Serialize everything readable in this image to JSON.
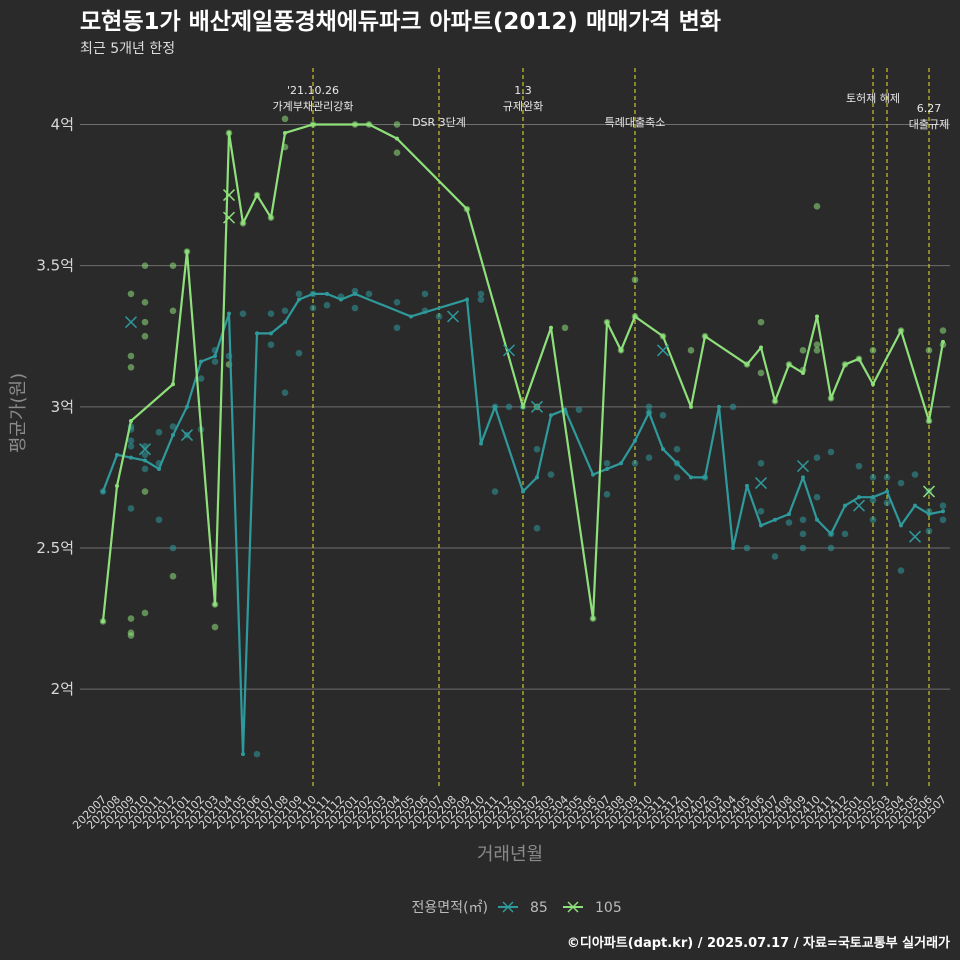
{
  "colors": {
    "background": "#2b2a2b",
    "grid": "#6e6e6e",
    "annotation_line": "#d4d42a",
    "series_85": "#2e9a9c",
    "series_105": "#8ee07a"
  },
  "chart_data": {
    "type": "line",
    "title": "모현동1가 배산제일풍경채에듀파크 아파트(2012) 매매가격 변화",
    "subtitle": "최근 5개년 한정",
    "xlabel": "거래년월",
    "ylabel": "평균가(원)",
    "caption": "©디아파트(dapt.kr) / 2025.07.17 / 자료=국토교통부 실거래가",
    "legend_title": "전용면적(㎡)",
    "legend_position": "bottom",
    "grid": true,
    "ylim": [
      1.65,
      4.2
    ],
    "yticks": [
      2,
      2.5,
      3,
      3.5,
      4
    ],
    "ytick_labels": [
      "2억",
      "2.5억",
      "3억",
      "3.5억",
      "4억"
    ],
    "categories": [
      "202007",
      "202008",
      "202009",
      "202010",
      "202011",
      "202012",
      "202101",
      "202102",
      "202103",
      "202104",
      "202105",
      "202106",
      "202107",
      "202108",
      "202109",
      "202110",
      "202111",
      "202112",
      "202201",
      "202202",
      "202203",
      "202204",
      "202205",
      "202206",
      "202207",
      "202208",
      "202209",
      "202210",
      "202211",
      "202212",
      "202301",
      "202302",
      "202303",
      "202304",
      "202305",
      "202306",
      "202307",
      "202308",
      "202309",
      "202310",
      "202311",
      "202312",
      "202401",
      "202402",
      "202403",
      "202404",
      "202405",
      "202406",
      "202407",
      "202408",
      "202409",
      "202410",
      "202411",
      "202412",
      "202501",
      "202502",
      "202503",
      "202504",
      "202505",
      "202506",
      "202507"
    ],
    "series": [
      {
        "name": "85",
        "values": [
          2.7,
          2.83,
          2.82,
          2.81,
          2.78,
          2.9,
          3.0,
          3.16,
          3.18,
          3.33,
          1.77,
          3.26,
          3.26,
          3.3,
          3.38,
          3.4,
          3.4,
          3.38,
          3.4,
          null,
          null,
          null,
          3.32,
          null,
          null,
          null,
          3.38,
          2.87,
          3.0,
          null,
          2.7,
          2.75,
          2.97,
          2.99,
          null,
          2.76,
          2.78,
          2.8,
          2.88,
          2.98,
          2.85,
          2.8,
          2.75,
          2.75,
          3.0,
          2.5,
          2.72,
          2.58,
          2.6,
          2.62,
          2.75,
          2.6,
          2.55,
          2.65,
          2.68,
          2.68,
          2.7,
          2.58,
          2.65,
          2.62,
          2.63
        ],
        "points": [
          [
            "202007",
            2.7
          ],
          [
            "202009",
            2.64
          ],
          [
            "202009",
            2.86
          ],
          [
            "202009",
            2.88
          ],
          [
            "202009",
            2.92
          ],
          [
            "202009",
            2.93
          ],
          [
            "202010",
            2.78
          ],
          [
            "202010",
            2.83
          ],
          [
            "202010",
            2.86
          ],
          [
            "202011",
            2.6
          ],
          [
            "202011",
            2.8
          ],
          [
            "202011",
            2.91
          ],
          [
            "202012",
            2.5
          ],
          [
            "202012",
            2.93
          ],
          [
            "202101",
            2.9
          ],
          [
            "202102",
            2.92
          ],
          [
            "202102",
            3.1
          ],
          [
            "202103",
            3.2
          ],
          [
            "202103",
            3.16
          ],
          [
            "202104",
            3.18
          ],
          [
            "202105",
            3.33
          ],
          [
            "202106",
            1.77
          ],
          [
            "202107",
            3.22
          ],
          [
            "202107",
            3.33
          ],
          [
            "202108",
            3.05
          ],
          [
            "202108",
            3.34
          ],
          [
            "202109",
            3.19
          ],
          [
            "202109",
            3.4
          ],
          [
            "202110",
            3.35
          ],
          [
            "202110",
            3.4
          ],
          [
            "202111",
            3.36
          ],
          [
            "202112",
            3.39
          ],
          [
            "202201",
            3.35
          ],
          [
            "202201",
            3.41
          ],
          [
            "202202",
            3.4
          ],
          [
            "202204",
            3.28
          ],
          [
            "202204",
            3.37
          ],
          [
            "202206",
            3.34
          ],
          [
            "202206",
            3.4
          ],
          [
            "202207",
            3.32
          ],
          [
            "202210",
            3.38
          ],
          [
            "202210",
            3.4
          ],
          [
            "202211",
            2.7
          ],
          [
            "202211",
            3.0
          ],
          [
            "202212",
            3.0
          ],
          [
            "202301",
            3.0
          ],
          [
            "202302",
            2.57
          ],
          [
            "202302",
            2.85
          ],
          [
            "202303",
            2.76
          ],
          [
            "202304",
            2.98
          ],
          [
            "202305",
            2.99
          ],
          [
            "202307",
            2.69
          ],
          [
            "202307",
            2.8
          ],
          [
            "202309",
            2.8
          ],
          [
            "202310",
            2.82
          ],
          [
            "202310",
            2.98
          ],
          [
            "202310",
            3.0
          ],
          [
            "202311",
            2.97
          ],
          [
            "202312",
            2.75
          ],
          [
            "202312",
            2.8
          ],
          [
            "202312",
            2.85
          ],
          [
            "202402",
            2.75
          ],
          [
            "202404",
            3.0
          ],
          [
            "202405",
            2.5
          ],
          [
            "202406",
            2.63
          ],
          [
            "202406",
            2.8
          ],
          [
            "202407",
            2.47
          ],
          [
            "202408",
            2.59
          ],
          [
            "202409",
            2.55
          ],
          [
            "202409",
            2.5
          ],
          [
            "202409",
            2.6
          ],
          [
            "202410",
            2.68
          ],
          [
            "202410",
            2.82
          ],
          [
            "202411",
            2.5
          ],
          [
            "202411",
            2.55
          ],
          [
            "202411",
            2.84
          ],
          [
            "202412",
            2.55
          ],
          [
            "202501",
            2.79
          ],
          [
            "202502",
            2.6
          ],
          [
            "202502",
            2.67
          ],
          [
            "202502",
            2.75
          ],
          [
            "202503",
            2.66
          ],
          [
            "202503",
            2.75
          ],
          [
            "202504",
            2.42
          ],
          [
            "202504",
            2.73
          ],
          [
            "202505",
            2.76
          ],
          [
            "202506",
            2.56
          ],
          [
            "202506",
            2.63
          ],
          [
            "202506",
            2.7
          ],
          [
            "202507",
            2.6
          ],
          [
            "202507",
            2.65
          ]
        ],
        "cancelled": [
          [
            "202009",
            3.3
          ],
          [
            "202010",
            2.85
          ],
          [
            "202101",
            2.9
          ],
          [
            "202208",
            3.32
          ],
          [
            "202212",
            3.2
          ],
          [
            "202302",
            3.0
          ],
          [
            "202311",
            3.2
          ],
          [
            "202406",
            2.73
          ],
          [
            "202409",
            2.79
          ],
          [
            "202501",
            2.65
          ],
          [
            "202505",
            2.54
          ]
        ]
      },
      {
        "name": "105",
        "values": [
          2.24,
          2.72,
          2.95,
          null,
          null,
          3.08,
          3.55,
          null,
          2.3,
          3.97,
          3.65,
          3.75,
          3.67,
          3.97,
          null,
          4.0,
          null,
          null,
          4.0,
          4.0,
          null,
          3.95,
          null,
          null,
          null,
          null,
          3.7,
          null,
          null,
          null,
          3.0,
          null,
          3.28,
          null,
          null,
          2.25,
          3.3,
          3.2,
          3.32,
          null,
          3.25,
          null,
          3.0,
          3.25,
          null,
          null,
          3.15,
          3.21,
          3.02,
          3.15,
          3.12,
          3.32,
          3.03,
          3.15,
          3.17,
          3.08,
          null,
          3.27,
          null,
          2.95,
          3.23
        ],
        "points": [
          [
            "202007",
            2.24
          ],
          [
            "202009",
            2.2
          ],
          [
            "202009",
            2.25
          ],
          [
            "202009",
            2.19
          ],
          [
            "202009",
            3.14
          ],
          [
            "202009",
            3.18
          ],
          [
            "202009",
            3.4
          ],
          [
            "202010",
            2.27
          ],
          [
            "202010",
            2.7
          ],
          [
            "202010",
            3.25
          ],
          [
            "202010",
            3.3
          ],
          [
            "202010",
            3.37
          ],
          [
            "202010",
            3.5
          ],
          [
            "202012",
            2.4
          ],
          [
            "202012",
            3.34
          ],
          [
            "202012",
            3.5
          ],
          [
            "202101",
            3.55
          ],
          [
            "202103",
            2.22
          ],
          [
            "202103",
            2.3
          ],
          [
            "202104",
            3.15
          ],
          [
            "202104",
            3.97
          ],
          [
            "202105",
            3.65
          ],
          [
            "202106",
            3.75
          ],
          [
            "202107",
            3.67
          ],
          [
            "202108",
            3.92
          ],
          [
            "202108",
            4.02
          ],
          [
            "202110",
            4.0
          ],
          [
            "202201",
            4.0
          ],
          [
            "202202",
            4.0
          ],
          [
            "202204",
            3.9
          ],
          [
            "202204",
            4.0
          ],
          [
            "202209",
            3.7
          ],
          [
            "202302",
            3.0
          ],
          [
            "202304",
            3.28
          ],
          [
            "202306",
            2.25
          ],
          [
            "202307",
            3.3
          ],
          [
            "202308",
            3.2
          ],
          [
            "202309",
            3.45
          ],
          [
            "202309",
            3.32
          ],
          [
            "202311",
            3.25
          ],
          [
            "202401",
            3.2
          ],
          [
            "202402",
            3.25
          ],
          [
            "202405",
            3.15
          ],
          [
            "202406",
            3.12
          ],
          [
            "202406",
            3.3
          ],
          [
            "202407",
            3.02
          ],
          [
            "202408",
            3.15
          ],
          [
            "202409",
            3.13
          ],
          [
            "202409",
            3.2
          ],
          [
            "202410",
            3.2
          ],
          [
            "202410",
            3.22
          ],
          [
            "202410",
            3.71
          ],
          [
            "202411",
            3.03
          ],
          [
            "202412",
            3.15
          ],
          [
            "202501",
            3.17
          ],
          [
            "202502",
            3.2
          ],
          [
            "202504",
            3.27
          ],
          [
            "202506",
            2.95
          ],
          [
            "202506",
            3.2
          ],
          [
            "202507",
            3.22
          ],
          [
            "202507",
            3.27
          ]
        ],
        "cancelled": [
          [
            "202104",
            3.67
          ],
          [
            "202104",
            3.75
          ],
          [
            "202506",
            2.7
          ]
        ]
      }
    ],
    "annotations": [
      {
        "x": "202110",
        "lines": [
          "'21.10.26",
          "가계부채관리강화"
        ],
        "row": 0
      },
      {
        "x": "202207",
        "lines": [
          "DSR 3단계"
        ],
        "row": 2
      },
      {
        "x": "202301",
        "lines": [
          "1.3",
          "규제완화"
        ],
        "row": 0
      },
      {
        "x": "202309",
        "lines": [
          "특례대출축소"
        ],
        "row": 2
      },
      {
        "x": "202502",
        "lines": [
          "토허제 해제"
        ],
        "row": 1
      },
      {
        "x": "202503",
        "lines": [],
        "row": 1
      },
      {
        "x": "202506",
        "lines": [
          "6.27",
          "대출규제"
        ],
        "row": 2
      }
    ]
  }
}
